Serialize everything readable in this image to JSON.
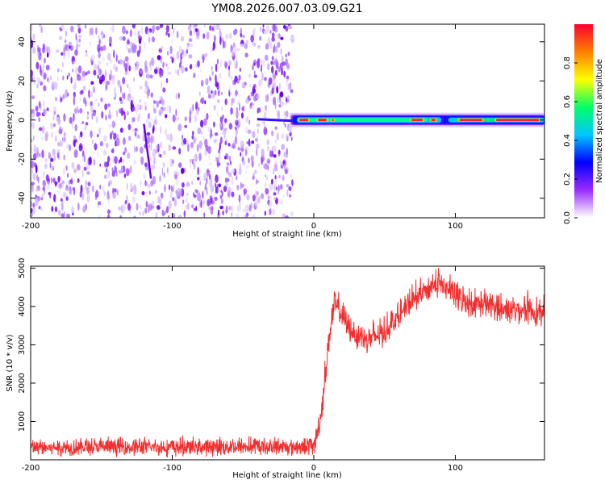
{
  "figure_title": "YM08.2026.007.03.09.G21",
  "chart_data": [
    {
      "type": "heatmap",
      "name": "spectrogram",
      "xlabel": "Height of straight line (km)",
      "ylabel": "Frequency (Hz)",
      "xlim": [
        -200,
        163
      ],
      "ylim": [
        -50,
        49
      ],
      "xticks": [
        -200,
        -100,
        0,
        100
      ],
      "yticks": [
        -40,
        -20,
        0,
        20,
        40
      ],
      "noise_region_x": [
        -200,
        -15
      ],
      "signal_region_x": [
        -15,
        163
      ],
      "signal_frequency_hz": 0,
      "colorbar": {
        "label": "Normalized spectral amplitude",
        "range": [
          0,
          1
        ],
        "ticks": [
          0.0,
          0.2,
          0.4,
          0.6,
          0.8
        ],
        "colors": [
          "#ffffff",
          "#9b2bff",
          "#0000ff",
          "#00c8ff",
          "#00ff66",
          "#ffff00",
          "#ff7f00",
          "#ff0033"
        ]
      }
    },
    {
      "type": "line",
      "name": "snr",
      "xlabel": "Height of straight line (km)",
      "ylabel": "SNR (10 * v/v)",
      "xlim": [
        -200,
        163
      ],
      "ylim": [
        0,
        5050
      ],
      "xticks": [
        -200,
        -100,
        0,
        100
      ],
      "yticks": [
        1000,
        2000,
        3000,
        4000,
        5000
      ],
      "color": "#f03030",
      "x": [
        -200,
        -150,
        -100,
        -50,
        -10,
        0,
        3,
        6,
        9,
        12,
        15,
        20,
        25,
        30,
        40,
        50,
        60,
        70,
        80,
        88,
        95,
        100,
        110,
        120,
        130,
        140,
        150,
        160,
        163
      ],
      "y": [
        280,
        300,
        290,
        310,
        300,
        330,
        700,
        1400,
        2500,
        3500,
        4000,
        3700,
        3400,
        3200,
        3100,
        3300,
        3700,
        4100,
        4400,
        4550,
        4400,
        4200,
        4050,
        4000,
        3900,
        3850,
        3900,
        3750,
        3800
      ]
    }
  ]
}
